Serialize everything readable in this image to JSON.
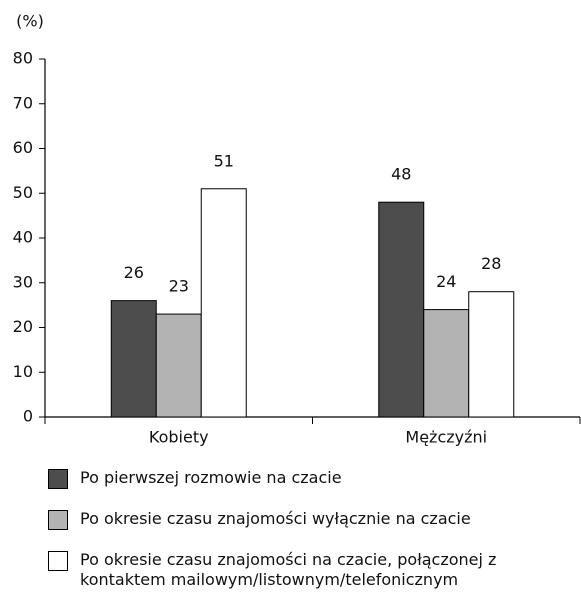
{
  "chart_data": {
    "type": "bar",
    "y_label": "(%)",
    "categories": [
      "Kobiety",
      "Mężczyźni"
    ],
    "series": [
      {
        "name": "Po pierwszej rozmowie na czacie",
        "color": "#4d4d4d",
        "values": [
          26,
          48
        ]
      },
      {
        "name": "Po okresie czasu znajomości wyłącznie na czacie",
        "color": "#b3b3b3",
        "values": [
          23,
          24
        ]
      },
      {
        "name": "Po okresie czasu znajomości na czacie, połączonej z kontaktem mailowym/listownym/telefonicznym",
        "color": "#ffffff",
        "values": [
          51,
          28
        ]
      }
    ],
    "ylim": [
      0,
      80
    ],
    "yticks": [
      0,
      10,
      20,
      30,
      40,
      50,
      60,
      70,
      80
    ],
    "grid": false,
    "legend": "bottom"
  }
}
